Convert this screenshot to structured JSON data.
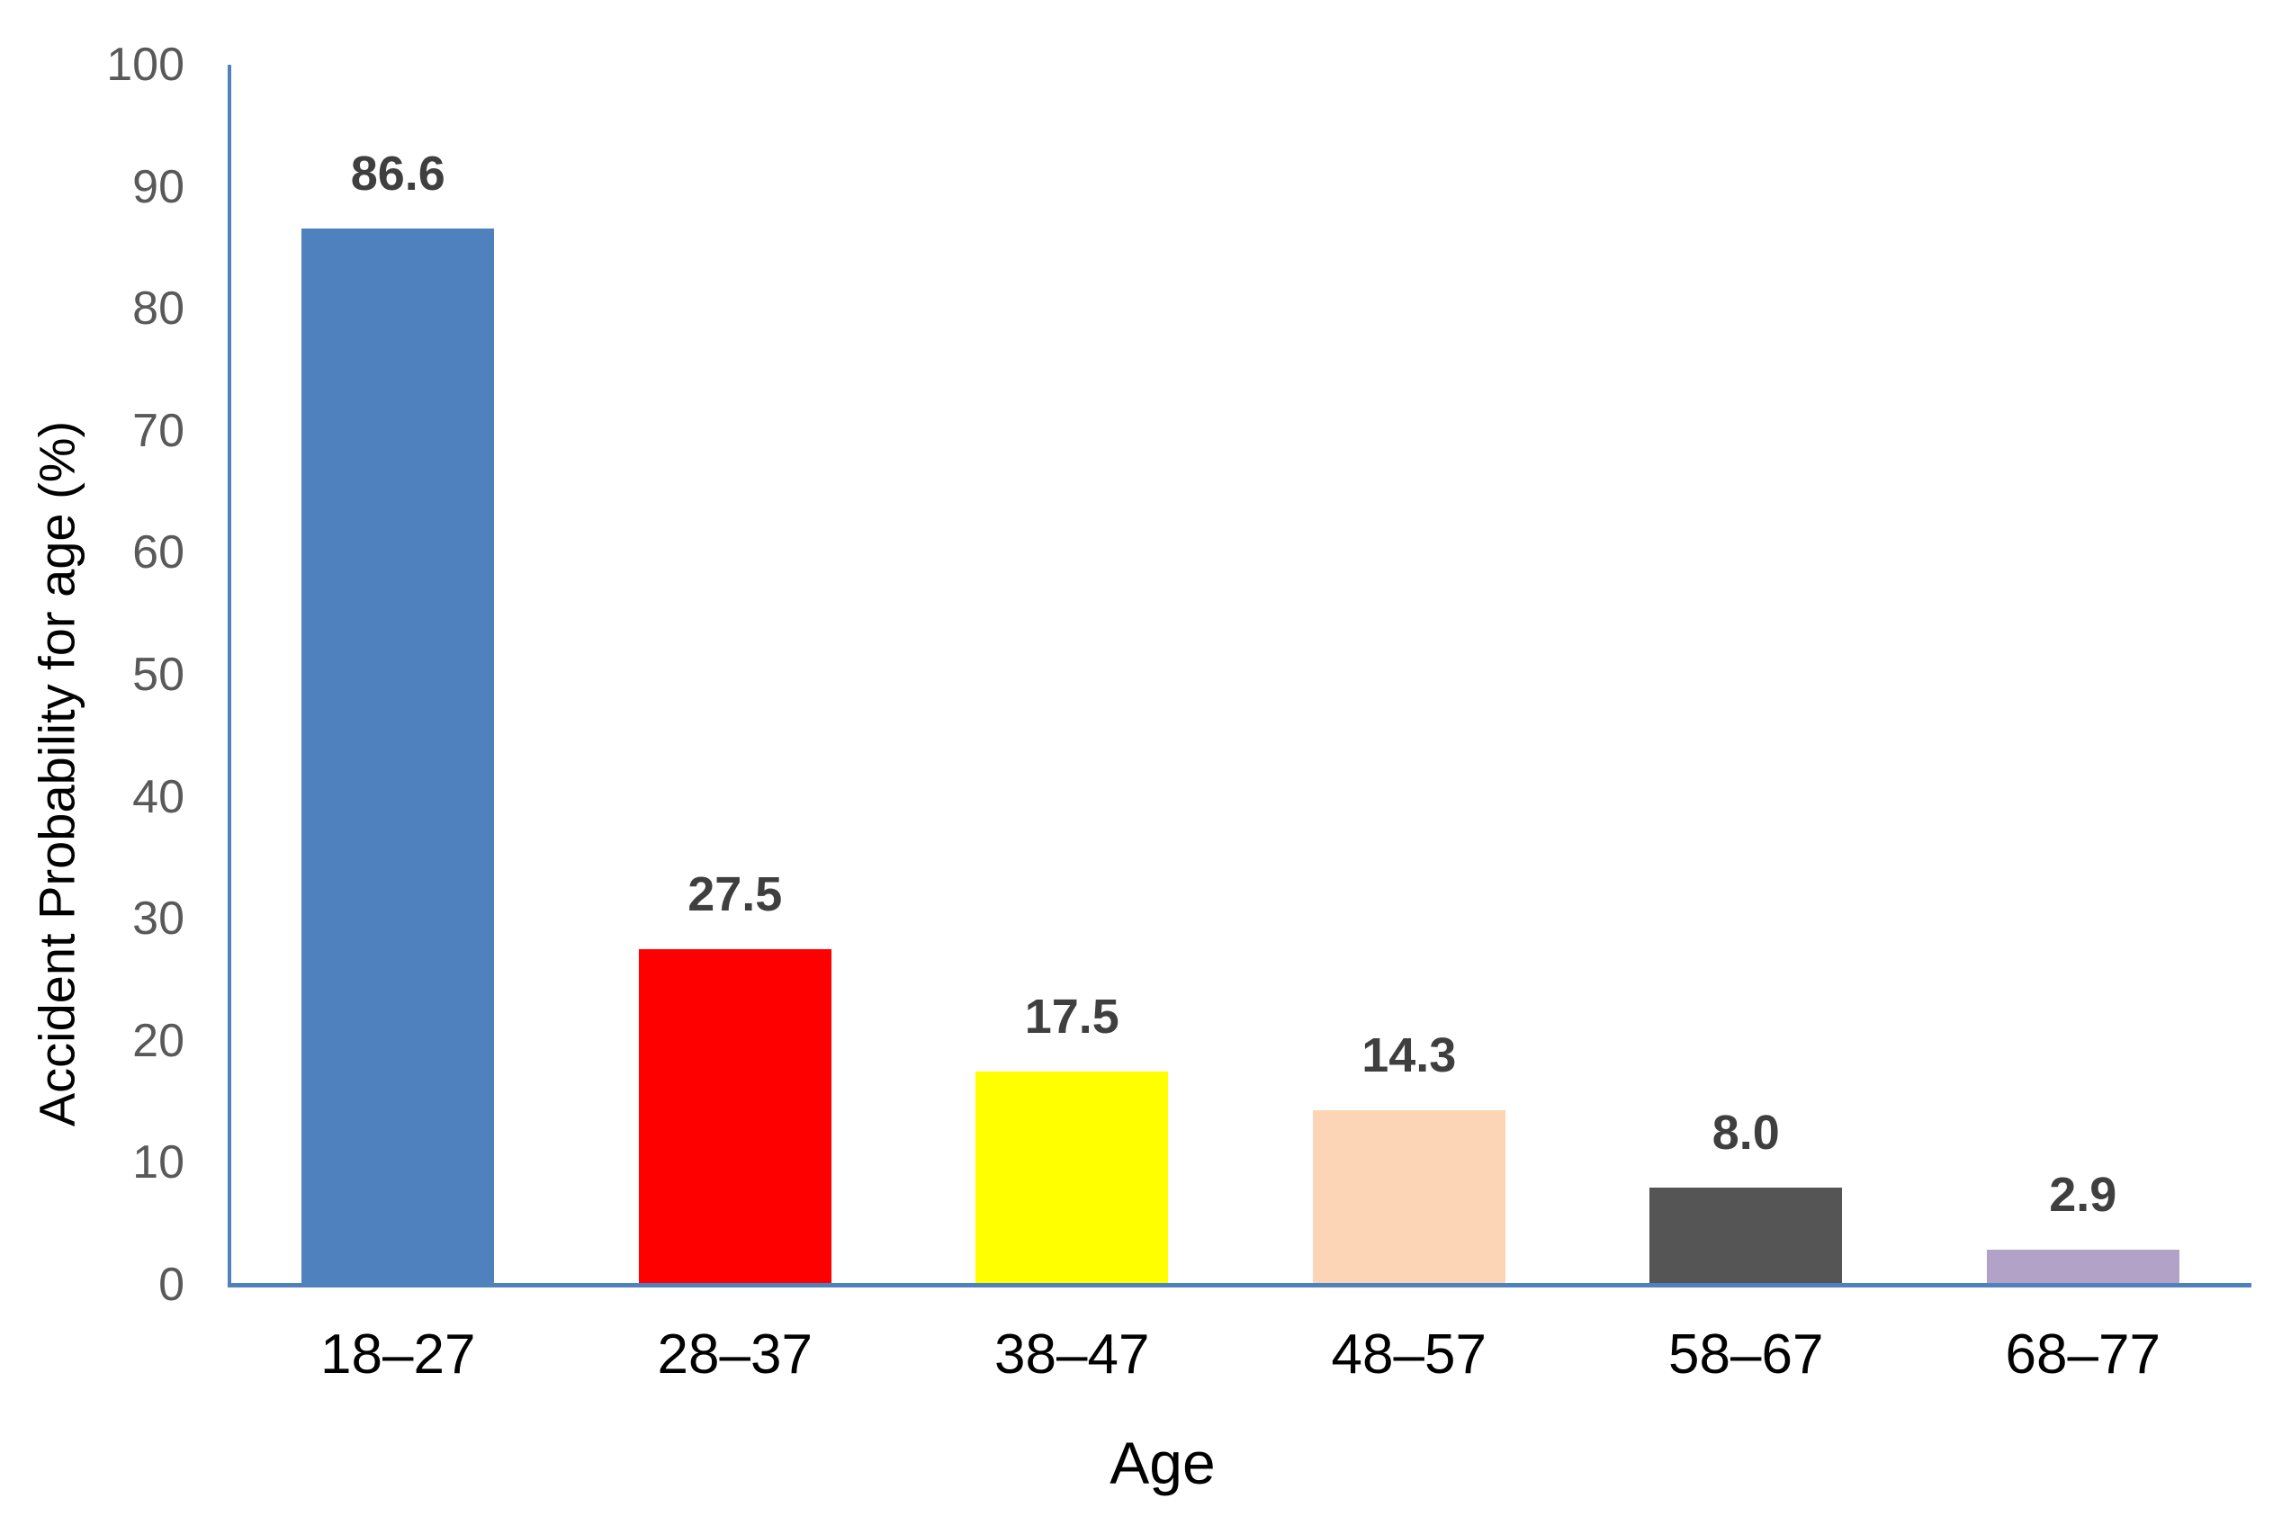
{
  "chart_data": {
    "type": "bar",
    "title": "",
    "xlabel": "Age",
    "ylabel": "Accident Probability for age (%)",
    "categories": [
      "18–27",
      "28–37",
      "38–47",
      "48–57",
      "58–67",
      "68–77"
    ],
    "values": [
      86.6,
      27.5,
      17.5,
      14.3,
      8.0,
      2.9
    ],
    "value_labels": [
      "86.6",
      "27.5",
      "17.5",
      "14.3",
      "8.0",
      "2.9"
    ],
    "bar_colors": [
      "#4E81BD",
      "#FF0000",
      "#FFFF00",
      "#FBD5B5",
      "#555555",
      "#B2A2C7"
    ],
    "ylim": [
      0,
      100
    ],
    "yticks": [
      100,
      90,
      80,
      70,
      60,
      50,
      40,
      30,
      20,
      10,
      0
    ],
    "ytick_labels": [
      "100",
      "90",
      "80",
      "70",
      "60",
      "50",
      "40",
      "30",
      "20",
      "10",
      "0"
    ],
    "grid": false,
    "legend": "none",
    "axis_color": "#4F81BD",
    "tick_label_color": "#595959",
    "value_label_color": "#3F3F3F",
    "category_label_color": "#000000"
  }
}
